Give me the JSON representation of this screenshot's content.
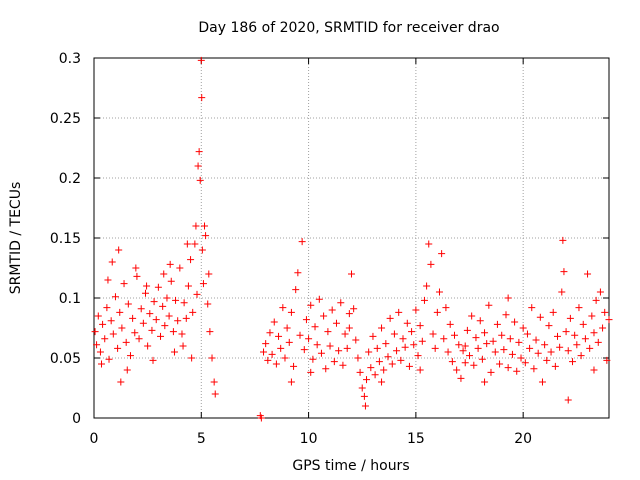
{
  "chart_data": {
    "type": "scatter",
    "title": "Day 186 of 2020, SRMTID for receiver drao",
    "xlabel": "GPS time / hours",
    "ylabel": "SRMTID / TECUs",
    "xlim": [
      0,
      24
    ],
    "ylim": [
      0,
      0.3
    ],
    "xticks": [
      0,
      5,
      10,
      15,
      20
    ],
    "xtick_labels": [
      "0",
      "5",
      "10",
      "15",
      "20"
    ],
    "yticks": [
      0,
      0.05,
      0.1,
      0.15,
      0.2,
      0.25,
      0.3
    ],
    "ytick_labels": [
      "0",
      "0.05",
      "0.1",
      "0.15",
      "0.2",
      "0.25",
      "0.3"
    ],
    "grid": true,
    "marker": "+",
    "series": [
      {
        "name": "SRMTID",
        "color": "#ff0000",
        "points": [
          [
            0.05,
            0.072
          ],
          [
            0.12,
            0.061
          ],
          [
            0.2,
            0.085
          ],
          [
            0.3,
            0.055
          ],
          [
            0.4,
            0.078
          ],
          [
            0.5,
            0.066
          ],
          [
            0.6,
            0.092
          ],
          [
            0.7,
            0.049
          ],
          [
            0.8,
            0.081
          ],
          [
            0.9,
            0.07
          ],
          [
            1.0,
            0.101
          ],
          [
            1.1,
            0.058
          ],
          [
            1.2,
            0.088
          ],
          [
            1.3,
            0.075
          ],
          [
            1.4,
            0.112
          ],
          [
            1.5,
            0.063
          ],
          [
            1.6,
            0.095
          ],
          [
            1.7,
            0.052
          ],
          [
            1.8,
            0.083
          ],
          [
            1.9,
            0.071
          ],
          [
            2.0,
            0.118
          ],
          [
            2.1,
            0.066
          ],
          [
            2.2,
            0.091
          ],
          [
            2.3,
            0.079
          ],
          [
            2.4,
            0.104
          ],
          [
            2.5,
            0.06
          ],
          [
            2.6,
            0.087
          ],
          [
            2.7,
            0.073
          ],
          [
            2.8,
            0.097
          ],
          [
            2.9,
            0.082
          ],
          [
            3.0,
            0.109
          ],
          [
            3.1,
            0.068
          ],
          [
            3.2,
            0.093
          ],
          [
            3.3,
            0.077
          ],
          [
            3.4,
            0.1
          ],
          [
            3.5,
            0.085
          ],
          [
            3.6,
            0.114
          ],
          [
            3.7,
            0.072
          ],
          [
            3.8,
            0.098
          ],
          [
            3.9,
            0.081
          ],
          [
            4.0,
            0.125
          ],
          [
            4.1,
            0.07
          ],
          [
            4.2,
            0.096
          ],
          [
            4.3,
            0.083
          ],
          [
            4.4,
            0.11
          ],
          [
            4.5,
            0.132
          ],
          [
            4.6,
            0.088
          ],
          [
            4.7,
            0.145
          ],
          [
            4.8,
            0.103
          ],
          [
            4.85,
            0.21
          ],
          [
            4.9,
            0.222
          ],
          [
            4.95,
            0.198
          ],
          [
            5.0,
            0.298
          ],
          [
            5.02,
            0.267
          ],
          [
            5.05,
            0.14
          ],
          [
            5.1,
            0.112
          ],
          [
            5.2,
            0.152
          ],
          [
            5.3,
            0.095
          ],
          [
            5.4,
            0.072
          ],
          [
            5.5,
            0.05
          ],
          [
            5.6,
            0.03
          ],
          [
            5.65,
            0.02
          ],
          [
            0.35,
            0.045
          ],
          [
            0.85,
            0.13
          ],
          [
            1.15,
            0.14
          ],
          [
            1.55,
            0.04
          ],
          [
            1.95,
            0.125
          ],
          [
            2.45,
            0.11
          ],
          [
            3.25,
            0.12
          ],
          [
            3.75,
            0.055
          ],
          [
            4.15,
            0.06
          ],
          [
            4.35,
            0.145
          ],
          [
            4.55,
            0.05
          ],
          [
            1.25,
            0.03
          ],
          [
            0.65,
            0.115
          ],
          [
            2.75,
            0.048
          ],
          [
            3.55,
            0.128
          ],
          [
            4.75,
            0.16
          ],
          [
            5.15,
            0.16
          ],
          [
            5.35,
            0.12
          ],
          [
            7.75,
            0.002
          ],
          [
            7.8,
            0.0
          ],
          [
            7.9,
            0.055
          ],
          [
            8.0,
            0.062
          ],
          [
            8.1,
            0.048
          ],
          [
            8.2,
            0.071
          ],
          [
            8.3,
            0.053
          ],
          [
            8.4,
            0.08
          ],
          [
            8.5,
            0.045
          ],
          [
            8.6,
            0.068
          ],
          [
            8.7,
            0.058
          ],
          [
            8.8,
            0.092
          ],
          [
            8.9,
            0.05
          ],
          [
            9.0,
            0.075
          ],
          [
            9.1,
            0.063
          ],
          [
            9.2,
            0.088
          ],
          [
            9.3,
            0.043
          ],
          [
            9.4,
            0.107
          ],
          [
            9.5,
            0.121
          ],
          [
            9.6,
            0.069
          ],
          [
            9.7,
            0.147
          ],
          [
            9.8,
            0.057
          ],
          [
            9.9,
            0.082
          ],
          [
            10.0,
            0.066
          ],
          [
            10.1,
            0.094
          ],
          [
            10.2,
            0.049
          ],
          [
            10.3,
            0.076
          ],
          [
            10.4,
            0.061
          ],
          [
            10.5,
            0.099
          ],
          [
            10.6,
            0.054
          ],
          [
            10.7,
            0.085
          ],
          [
            10.8,
            0.041
          ],
          [
            10.9,
            0.072
          ],
          [
            11.0,
            0.06
          ],
          [
            11.1,
            0.09
          ],
          [
            11.2,
            0.047
          ],
          [
            11.3,
            0.079
          ],
          [
            11.4,
            0.056
          ],
          [
            11.5,
            0.096
          ],
          [
            11.6,
            0.044
          ],
          [
            11.7,
            0.07
          ],
          [
            11.8,
            0.058
          ],
          [
            11.9,
            0.087
          ],
          [
            12.0,
            0.12
          ],
          [
            12.1,
            0.091
          ],
          [
            12.2,
            0.065
          ],
          [
            12.3,
            0.05
          ],
          [
            12.4,
            0.038
          ],
          [
            12.5,
            0.025
          ],
          [
            12.6,
            0.018
          ],
          [
            12.65,
            0.01
          ],
          [
            12.7,
            0.032
          ],
          [
            12.8,
            0.055
          ],
          [
            12.9,
            0.042
          ],
          [
            13.0,
            0.068
          ],
          [
            13.1,
            0.036
          ],
          [
            13.2,
            0.058
          ],
          [
            13.3,
            0.047
          ],
          [
            13.4,
            0.075
          ],
          [
            13.5,
            0.04
          ],
          [
            13.6,
            0.062
          ],
          [
            13.7,
            0.051
          ],
          [
            13.8,
            0.083
          ],
          [
            13.9,
            0.045
          ],
          [
            14.0,
            0.07
          ],
          [
            14.1,
            0.056
          ],
          [
            14.2,
            0.088
          ],
          [
            14.3,
            0.048
          ],
          [
            14.4,
            0.066
          ],
          [
            14.5,
            0.059
          ],
          [
            14.6,
            0.079
          ],
          [
            14.7,
            0.043
          ],
          [
            14.8,
            0.072
          ],
          [
            14.9,
            0.061
          ],
          [
            15.0,
            0.09
          ],
          [
            15.1,
            0.052
          ],
          [
            15.2,
            0.077
          ],
          [
            15.3,
            0.064
          ],
          [
            15.4,
            0.098
          ],
          [
            15.5,
            0.11
          ],
          [
            15.6,
            0.145
          ],
          [
            15.7,
            0.128
          ],
          [
            15.8,
            0.07
          ],
          [
            15.9,
            0.058
          ],
          [
            16.0,
            0.088
          ],
          [
            16.1,
            0.105
          ],
          [
            16.2,
            0.137
          ],
          [
            16.3,
            0.066
          ],
          [
            16.4,
            0.092
          ],
          [
            16.5,
            0.055
          ],
          [
            16.6,
            0.078
          ],
          [
            16.7,
            0.047
          ],
          [
            16.8,
            0.069
          ],
          [
            16.9,
            0.04
          ],
          [
            17.0,
            0.061
          ],
          [
            17.1,
            0.033
          ],
          [
            17.2,
            0.056
          ],
          [
            17.3,
            0.046
          ],
          [
            17.4,
            0.073
          ],
          [
            17.5,
            0.052
          ],
          [
            17.6,
            0.085
          ],
          [
            17.7,
            0.044
          ],
          [
            17.8,
            0.067
          ],
          [
            17.9,
            0.058
          ],
          [
            18.0,
            0.081
          ],
          [
            18.1,
            0.049
          ],
          [
            18.2,
            0.071
          ],
          [
            18.3,
            0.062
          ],
          [
            18.4,
            0.094
          ],
          [
            18.5,
            0.038
          ],
          [
            18.6,
            0.064
          ],
          [
            18.7,
            0.055
          ],
          [
            18.8,
            0.078
          ],
          [
            18.9,
            0.045
          ],
          [
            19.0,
            0.069
          ],
          [
            19.1,
            0.057
          ],
          [
            19.2,
            0.086
          ],
          [
            19.3,
            0.042
          ],
          [
            19.4,
            0.066
          ],
          [
            19.5,
            0.053
          ],
          [
            19.6,
            0.08
          ],
          [
            19.7,
            0.039
          ],
          [
            19.8,
            0.063
          ],
          [
            19.9,
            0.05
          ],
          [
            20.0,
            0.075
          ],
          [
            20.1,
            0.046
          ],
          [
            20.2,
            0.07
          ],
          [
            20.3,
            0.058
          ],
          [
            20.4,
            0.092
          ],
          [
            20.5,
            0.041
          ],
          [
            20.6,
            0.065
          ],
          [
            20.7,
            0.054
          ],
          [
            20.8,
            0.084
          ],
          [
            20.9,
            0.03
          ],
          [
            21.0,
            0.061
          ],
          [
            21.1,
            0.048
          ],
          [
            21.2,
            0.077
          ],
          [
            21.3,
            0.055
          ],
          [
            21.4,
            0.088
          ],
          [
            21.5,
            0.043
          ],
          [
            21.6,
            0.068
          ],
          [
            21.7,
            0.059
          ],
          [
            21.8,
            0.105
          ],
          [
            21.85,
            0.148
          ],
          [
            21.9,
            0.122
          ],
          [
            22.0,
            0.072
          ],
          [
            22.1,
            0.056
          ],
          [
            22.2,
            0.083
          ],
          [
            22.3,
            0.047
          ],
          [
            22.4,
            0.069
          ],
          [
            22.5,
            0.061
          ],
          [
            22.6,
            0.092
          ],
          [
            22.7,
            0.052
          ],
          [
            22.8,
            0.078
          ],
          [
            22.9,
            0.066
          ],
          [
            23.0,
            0.12
          ],
          [
            23.1,
            0.058
          ],
          [
            23.2,
            0.085
          ],
          [
            23.3,
            0.071
          ],
          [
            23.4,
            0.098
          ],
          [
            23.5,
            0.063
          ],
          [
            23.6,
            0.105
          ],
          [
            23.7,
            0.075
          ],
          [
            23.8,
            0.088
          ],
          [
            23.9,
            0.048
          ],
          [
            24.0,
            0.082
          ],
          [
            22.1,
            0.015
          ],
          [
            18.2,
            0.03
          ],
          [
            13.4,
            0.03
          ],
          [
            15.2,
            0.04
          ],
          [
            10.1,
            0.038
          ],
          [
            9.2,
            0.03
          ],
          [
            11.9,
            0.075
          ],
          [
            17.3,
            0.06
          ],
          [
            19.3,
            0.1
          ],
          [
            23.3,
            0.04
          ]
        ]
      }
    ]
  }
}
